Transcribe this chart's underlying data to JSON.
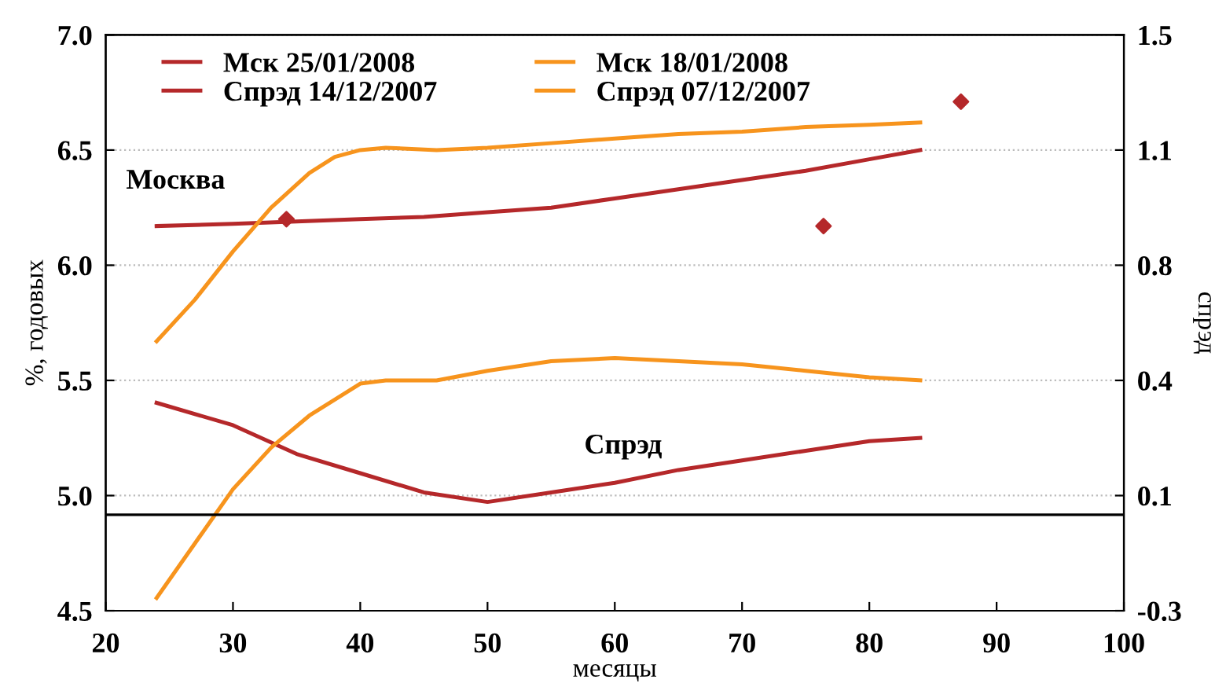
{
  "chart_data": {
    "type": "line",
    "xlabel": "месяцы",
    "ylabel": "%, годовых",
    "y2label": "спрэд",
    "xlim": [
      20,
      100
    ],
    "xticks": [
      20,
      30,
      40,
      50,
      60,
      70,
      80,
      90,
      100
    ],
    "ylim": [
      4.5,
      7.0
    ],
    "yticks": [
      4.5,
      {
        "value": 5,
        "label": "5.0"
      },
      5.5,
      {
        "value": 6,
        "label": "6.0"
      },
      6.5,
      {
        "value": 7,
        "label": "7.0"
      }
    ],
    "y2lim": [
      -0.3,
      1.5
    ],
    "y2ticks": [
      -0.3,
      {
        "value": 0.06,
        "label": "0.1"
      },
      {
        "value": 0.42,
        "label": "0.4"
      },
      {
        "value": 0.78,
        "label": "0.8"
      },
      {
        "value": 1.14,
        "label": "1.1"
      },
      1.5
    ],
    "grid": "y",
    "legend": "top left",
    "line_style": "solid",
    "annotations": [
      "Москва",
      "Спрэд"
    ],
    "ref_lines": [
      {
        "axis": "y2",
        "value": 0,
        "color": "#000000"
      }
    ],
    "series": [
      {
        "name": "Мск 25/01/2008",
        "color": "#b5282a",
        "x": [
          24,
          30,
          35,
          40,
          45,
          50,
          55,
          60,
          65,
          70,
          75,
          80,
          84
        ],
        "values": [
          6.17,
          6.18,
          6.19,
          6.2,
          6.21,
          6.23,
          6.25,
          6.29,
          6.33,
          6.37,
          6.41,
          6.46,
          6.5
        ]
      },
      {
        "name": "Мск 18/01/2008",
        "color": "#f7941d",
        "x": [
          24,
          27,
          30,
          33,
          36,
          38,
          40,
          42,
          46,
          50,
          55,
          60,
          65,
          70,
          75,
          80,
          84
        ],
        "values": [
          5.67,
          5.85,
          6.06,
          6.25,
          6.4,
          6.47,
          6.5,
          6.51,
          6.5,
          6.51,
          6.53,
          6.55,
          6.57,
          6.58,
          6.6,
          6.61,
          6.62
        ]
      },
      {
        "name": "Спрэд 14/12/2007",
        "color": "#b5282a",
        "axis": "y2",
        "x": [
          24,
          30,
          35,
          40,
          45,
          50,
          55,
          60,
          65,
          70,
          75,
          80,
          84
        ],
        "values": [
          0.35,
          0.28,
          0.19,
          0.13,
          0.07,
          0.04,
          0.07,
          0.1,
          0.14,
          0.17,
          0.2,
          0.23,
          0.24
        ]
      },
      {
        "name": "Спрэд 07/12/2007",
        "color": "#f7941d",
        "axis": "y2",
        "x": [
          24,
          27,
          30,
          33,
          36,
          40,
          42,
          46,
          50,
          55,
          60,
          65,
          70,
          75,
          80,
          84
        ],
        "values": [
          -0.26,
          -0.09,
          0.08,
          0.21,
          0.31,
          0.41,
          0.42,
          0.42,
          0.45,
          0.48,
          0.49,
          0.48,
          0.47,
          0.45,
          0.43,
          0.42
        ]
      },
      {
        "type": "scatter",
        "marker": "diamond",
        "color": "#b5282a",
        "x": [
          34.2,
          76.4,
          87.2
        ],
        "values": [
          6.2,
          6.17,
          6.71
        ]
      }
    ]
  }
}
